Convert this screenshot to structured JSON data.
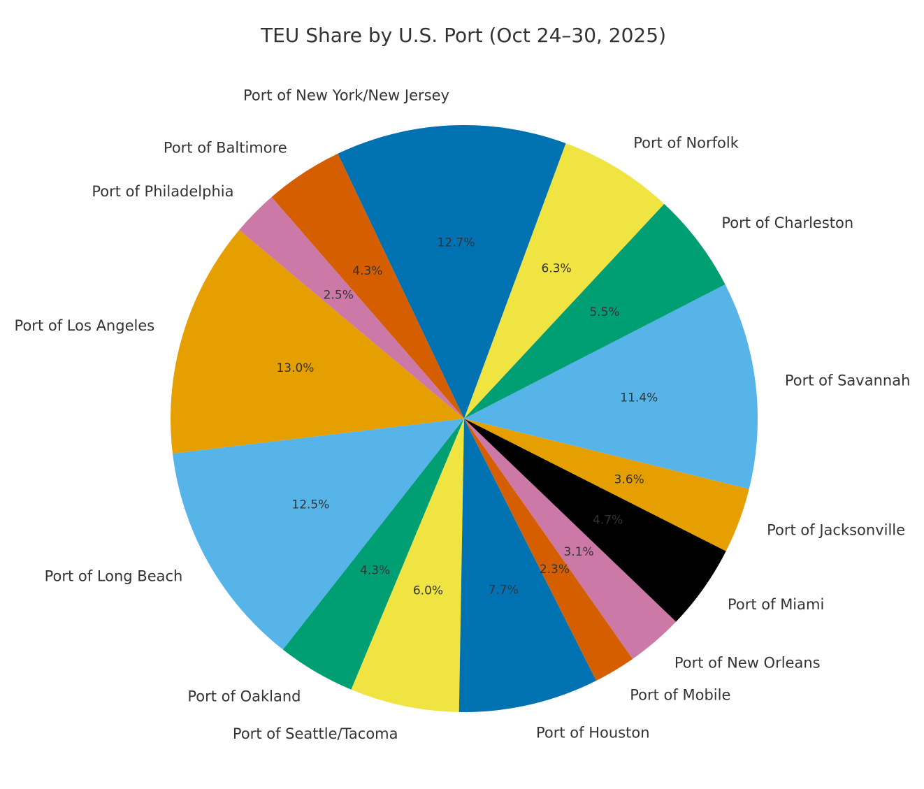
{
  "chart_data": {
    "type": "pie",
    "title": "TEU Share by U.S. Port (Oct 24–30, 2025)",
    "categories": [
      "Port of Los Angeles",
      "Port of Long Beach",
      "Port of Oakland",
      "Port of Seattle/Tacoma",
      "Port of Houston",
      "Port of Mobile",
      "Port of New Orleans",
      "Port of Miami",
      "Port of Jacksonville",
      "Port of Savannah",
      "Port of Charleston",
      "Port of Norfolk",
      "Port of New York/New Jersey",
      "Port of Baltimore",
      "Port of Philadelphia"
    ],
    "values": [
      13.0,
      12.5,
      4.3,
      6.0,
      7.7,
      2.3,
      3.1,
      4.7,
      3.6,
      11.4,
      5.5,
      6.3,
      12.7,
      4.3,
      2.5
    ],
    "value_labels": [
      "13.0%",
      "12.5%",
      "4.3%",
      "6.0%",
      "7.7%",
      "2.3%",
      "3.1%",
      "4.7%",
      "3.6%",
      "11.4%",
      "5.5%",
      "6.3%",
      "12.7%",
      "4.3%",
      "2.5%"
    ],
    "colors": [
      "#E69F00",
      "#56B4E9",
      "#009E73",
      "#F0E442",
      "#0072B2",
      "#D55E00",
      "#CC79A7",
      "#000000",
      "#E69F00",
      "#56B4E9",
      "#009E73",
      "#F0E442",
      "#0072B2",
      "#D55E00",
      "#CC79A7"
    ]
  }
}
